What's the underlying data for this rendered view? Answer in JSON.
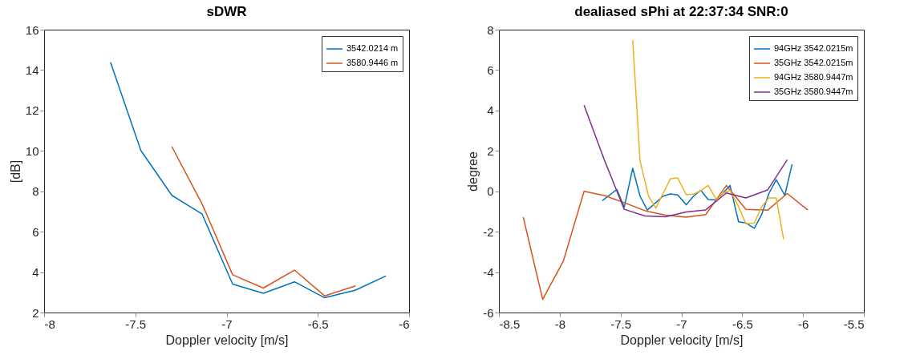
{
  "chart_data": [
    {
      "type": "line",
      "title": "sDWR",
      "xlabel": "Doppler velocity [m/s]",
      "ylabel": "[dB]",
      "xlim": [
        -8,
        -6
      ],
      "xticks": [
        -8,
        -7.5,
        -7,
        -6.5,
        -6
      ],
      "ylim": [
        2,
        16
      ],
      "yticks": [
        2,
        4,
        6,
        8,
        10,
        12,
        14,
        16
      ],
      "legend": "top right",
      "line_style": "solid",
      "series": [
        {
          "name": "3542.0214 m",
          "color": "#0072bd",
          "x": [
            -7.636,
            -7.47,
            -7.3,
            -7.134,
            -6.967,
            -6.799,
            -6.628,
            -6.462,
            -6.293,
            -6.127
          ],
          "values": [
            14.38,
            10.02,
            7.8,
            6.87,
            3.41,
            2.95,
            3.52,
            2.73,
            3.11,
            3.81
          ]
        },
        {
          "name": "3580.9446 m",
          "color": "#d95319",
          "x": [
            -7.3,
            -7.134,
            -6.967,
            -6.799,
            -6.628,
            -6.462,
            -6.293
          ],
          "values": [
            10.21,
            7.37,
            3.87,
            3.21,
            4.1,
            2.82,
            3.32
          ]
        }
      ]
    },
    {
      "type": "line",
      "title": "dealiased sPhi at 22:37:34 SNR:0",
      "xlabel": "Doppler velocity [m/s]",
      "ylabel": "degree",
      "xlim": [
        -8.5,
        -5.5
      ],
      "xticks": [
        -8.5,
        -8,
        -7.5,
        -7,
        -6.5,
        -6,
        -5.5
      ],
      "ylim": [
        -6,
        8
      ],
      "yticks": [
        -6,
        -4,
        -2,
        0,
        2,
        4,
        6,
        8
      ],
      "legend": "top right",
      "line_style": "solid",
      "series": [
        {
          "name": "94GHz 3542.0215m",
          "color": "#0072bd",
          "x": [
            -7.65,
            -7.53,
            -7.47,
            -7.4,
            -7.34,
            -7.28,
            -7.21,
            -7.15,
            -7.09,
            -7.03,
            -6.96,
            -6.9,
            -6.84,
            -6.78,
            -6.71,
            -6.6,
            -6.53,
            -6.47,
            -6.4,
            -6.34,
            -6.28,
            -6.22,
            -6.15,
            -6.09
          ],
          "values": [
            -0.46,
            0.09,
            -0.79,
            1.14,
            -0.24,
            -0.93,
            -0.56,
            -0.24,
            -0.13,
            -0.18,
            -0.67,
            -0.24,
            0.05,
            -0.41,
            -0.43,
            0.29,
            -1.51,
            -1.57,
            -1.83,
            -1.15,
            -0.1,
            0.57,
            -0.2,
            1.34
          ]
        },
        {
          "name": "35GHz 3542.0215m",
          "color": "#d95319",
          "x": [
            -8.3,
            -8.14,
            -7.97,
            -7.8,
            -7.64,
            -7.47,
            -7.3,
            -7.13,
            -6.96,
            -6.8,
            -6.63,
            -6.47,
            -6.29,
            -6.13,
            -5.96
          ],
          "values": [
            -1.28,
            -5.35,
            -3.45,
            0,
            -0.2,
            -0.56,
            -0.96,
            -1.18,
            -1.28,
            -1.15,
            0.29,
            -0.89,
            -0.93,
            -0.11,
            -0.93
          ]
        },
        {
          "name": "94GHz 3580.9447m",
          "color": "#edb120",
          "x": [
            -7.4,
            -7.34,
            -7.27,
            -7.21,
            -7.15,
            -7.09,
            -7.03,
            -6.96,
            -6.9,
            -6.84,
            -6.78,
            -6.71,
            -6.66,
            -6.6,
            -6.53,
            -6.47,
            -6.4,
            -6.34,
            -6.28,
            -6.22,
            -6.16
          ],
          "values": [
            7.47,
            1.51,
            -0.24,
            -0.83,
            -0.1,
            0.62,
            0.66,
            -0.17,
            -0.14,
            0.03,
            0.29,
            -0.43,
            -0.1,
            0.05,
            -0.76,
            -1.61,
            -1.57,
            -0.76,
            -0.33,
            -0.33,
            -2.37
          ]
        },
        {
          "name": "35GHz 3580.9447m",
          "color": "#7e2f8e",
          "x": [
            -7.8,
            -7.63,
            -7.47,
            -7.3,
            -7.13,
            -6.96,
            -6.8,
            -6.63,
            -6.47,
            -6.29,
            -6.13
          ],
          "values": [
            4.26,
            1.5,
            -0.89,
            -1.22,
            -1.26,
            -1.02,
            -0.92,
            -0.08,
            -0.33,
            0.07,
            1.56
          ]
        }
      ]
    }
  ]
}
